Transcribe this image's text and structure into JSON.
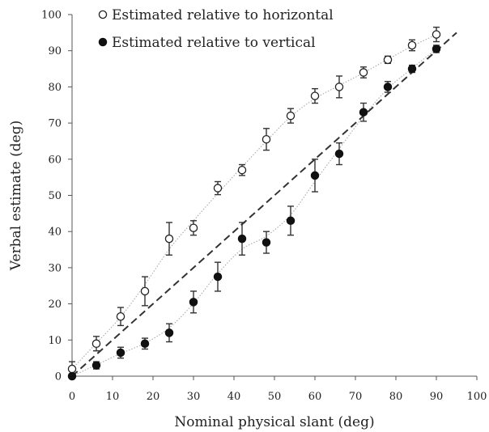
{
  "chart_data": {
    "type": "scatter",
    "xlabel": "Nominal physical slant (deg)",
    "ylabel": "Verbal estimate (deg)",
    "xlim": [
      0,
      100
    ],
    "ylim": [
      0,
      100
    ],
    "xticks": [
      "0",
      "10",
      "20",
      "30",
      "40",
      "50",
      "60",
      "70",
      "80",
      "90",
      "100"
    ],
    "yticks": [
      "0",
      "10",
      "20",
      "30",
      "40",
      "50",
      "60",
      "70",
      "80",
      "90",
      "100"
    ],
    "grid": false,
    "legend_position": "top-left",
    "x": [
      0,
      6,
      12,
      18,
      24,
      30,
      36,
      42,
      48,
      54,
      60,
      66,
      72,
      78,
      84,
      90
    ],
    "series": [
      {
        "name": "Estimated relative to horizontal",
        "marker": "open-circle",
        "values": [
          2,
          9,
          16.5,
          23.5,
          38,
          41,
          52,
          57,
          65.5,
          72,
          77.5,
          80,
          84,
          87.5,
          91.5,
          94.5
        ],
        "errors": [
          2,
          2,
          2.5,
          4,
          4.5,
          2,
          1.8,
          1.5,
          3,
          2,
          2,
          3,
          1.5,
          1,
          1.5,
          2
        ],
        "color": "#222222"
      },
      {
        "name": "Estimated relative to vertical",
        "marker": "filled-circle",
        "values": [
          0,
          3,
          6.5,
          9,
          12,
          20.5,
          27.5,
          38,
          37,
          43,
          55.5,
          61.5,
          73,
          80,
          85,
          90.5
        ],
        "errors": [
          0,
          1,
          1.5,
          1.5,
          2.5,
          3,
          4,
          4.5,
          3,
          4,
          4.5,
          3,
          2.5,
          1.5,
          1,
          1
        ],
        "color": "#111111"
      }
    ],
    "reference_line": {
      "style": "dashed",
      "x": [
        0,
        95
      ],
      "y": [
        0,
        95
      ]
    },
    "fit_curves": "dotted smooth curves through each series"
  }
}
